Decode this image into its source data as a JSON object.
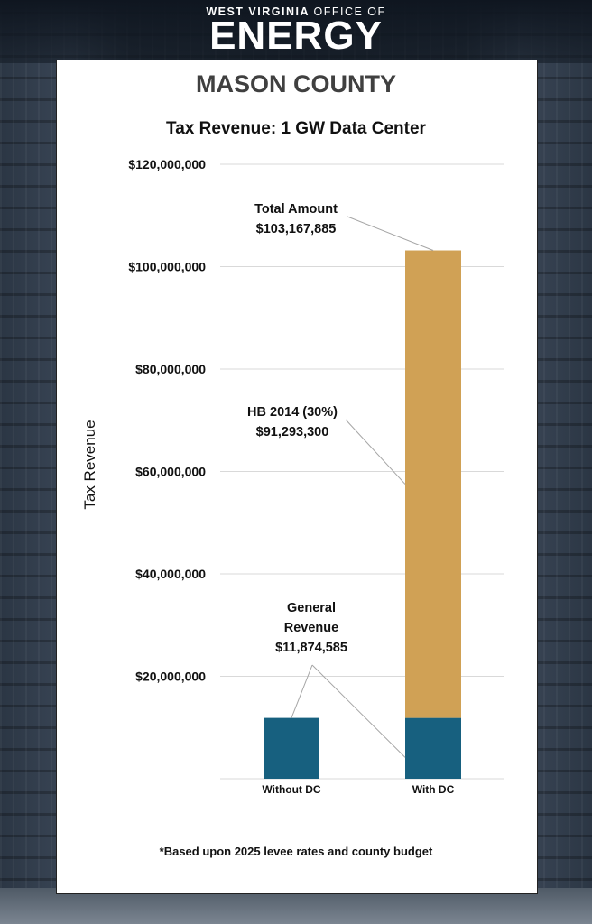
{
  "header": {
    "org_line_bold": "WEST VIRGINIA",
    "org_line_light": "OFFICE OF",
    "brand": "ENERGY"
  },
  "county": "MASON COUNTY",
  "footnote": "*Based upon 2025 levee rates and county budget",
  "colors": {
    "general_revenue": "#17607f",
    "hb2014": "#d0a155",
    "gridline": "#d9d9d9",
    "leader": "#a6a6a6"
  },
  "chart_data": {
    "type": "bar",
    "stacked": true,
    "title": "Tax Revenue: 1 GW Data Center",
    "xlabel": "",
    "ylabel": "Tax Revenue",
    "ylim": [
      0,
      120000000
    ],
    "yticks": [
      20000000,
      40000000,
      60000000,
      80000000,
      100000000,
      120000000
    ],
    "ytick_labels": [
      "$20,000,000",
      "$40,000,000",
      "$60,000,000",
      "$80,000,000",
      "$100,000,000",
      "$120,000,000"
    ],
    "grid": true,
    "categories": [
      "Without DC",
      "With DC"
    ],
    "series": [
      {
        "name": "General Revenue",
        "values": [
          11874585,
          11874585
        ]
      },
      {
        "name": "HB 2014 (30%)",
        "values": [
          0,
          91293300
        ]
      }
    ],
    "annotations": [
      {
        "lines": [
          "Total Amount",
          "$103,167,885"
        ]
      },
      {
        "lines": [
          "HB 2014 (30%)",
          "$91,293,300"
        ]
      },
      {
        "lines": [
          "General",
          "Revenue",
          "$11,874,585"
        ]
      }
    ]
  }
}
